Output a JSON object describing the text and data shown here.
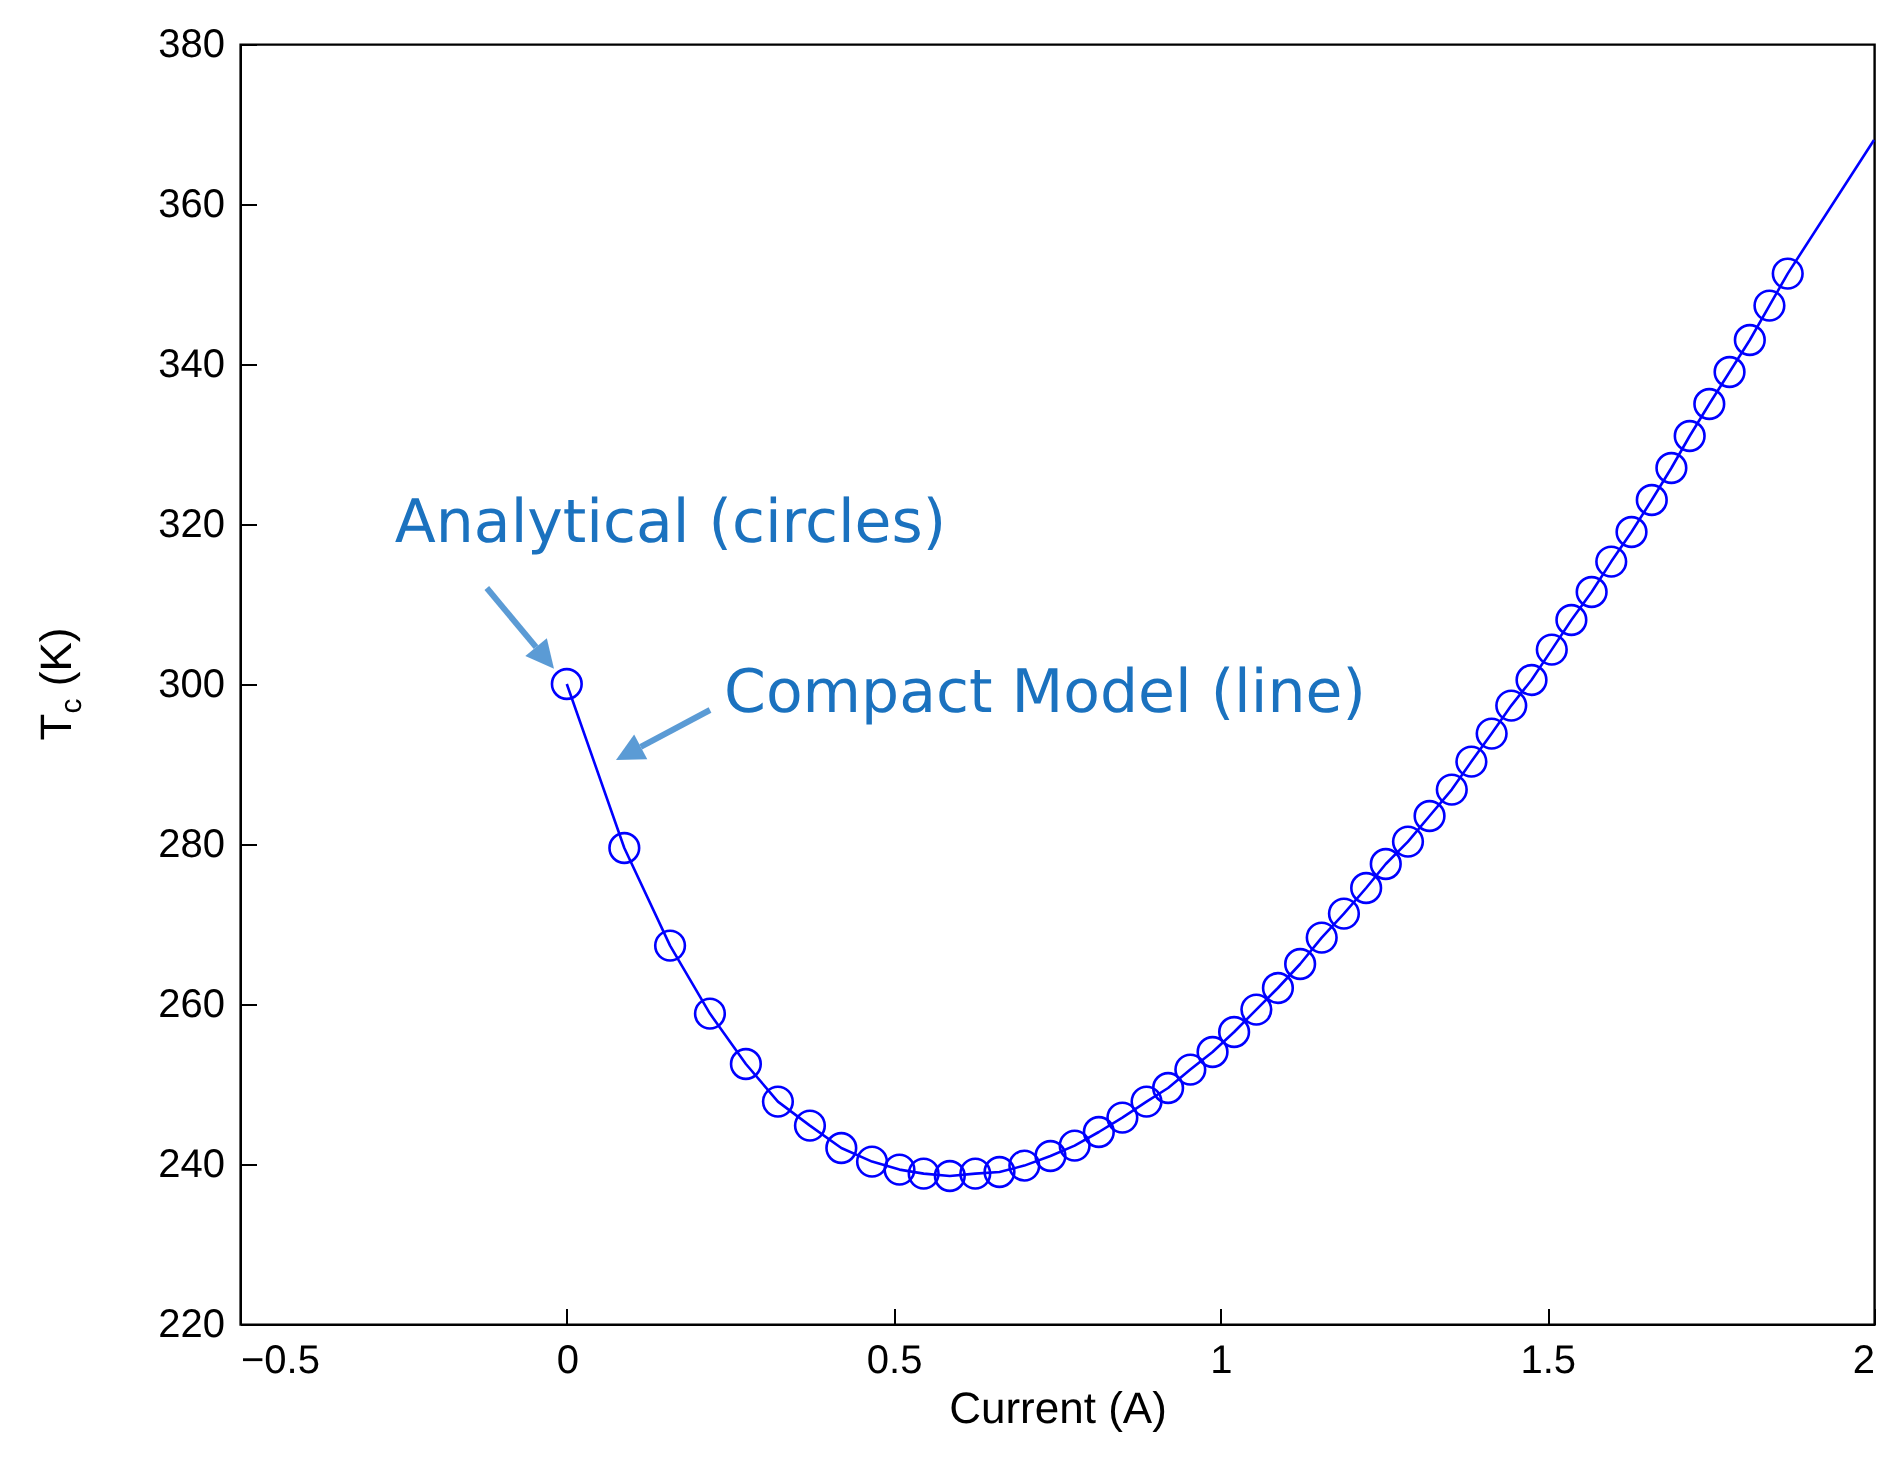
{
  "chart_data": {
    "type": "scatter",
    "xlabel": "Current (A)",
    "ylabel": "T$_{c}$ (K)",
    "xlim": [
      -0.5,
      2
    ],
    "ylim": [
      220,
      380
    ],
    "xticks": [
      {
        "value": -0.5,
        "label": "−0.5"
      },
      0,
      0.5,
      1,
      1.5,
      2
    ],
    "yticks": [
      220,
      240,
      260,
      280,
      300,
      320,
      340,
      360,
      380
    ],
    "grid": false,
    "annotations": [
      {
        "text": "Analytical (circles)",
        "x": 0,
        "y": 300
      },
      "Compact Model (line)"
    ],
    "series": [
      {
        "type": "line",
        "color": "#0000ff",
        "marker": "none",
        "x": [
          0,
          0.088,
          0.158,
          0.219,
          0.274,
          0.323,
          0.372,
          0.42,
          0.467,
          0.509,
          0.546,
          0.586,
          0.625,
          0.662,
          0.7,
          0.74,
          0.777,
          0.814,
          0.85,
          0.887,
          0.92,
          0.954,
          0.988,
          1.021,
          1.055,
          1.088,
          1.122,
          1.155,
          1.189,
          1.223,
          1.253,
          1.287,
          1.32,
          1.354,
          1.384,
          1.415,
          1.445,
          1.476,
          1.507,
          1.537,
          1.568,
          1.598,
          1.629,
          1.66,
          1.69,
          1.718,
          1.748,
          1.779,
          1.81,
          1.84,
          1.868,
          2
        ],
        "values": [
          300,
          279.5,
          267.3,
          258.8,
          252.5,
          247.8,
          244.8,
          242,
          240.3,
          239.3,
          238.8,
          238.5,
          238.8,
          239,
          239.8,
          241,
          242.3,
          244,
          245.8,
          247.8,
          249.5,
          251.8,
          254,
          256.5,
          259.3,
          262,
          265,
          268.3,
          271.3,
          274.5,
          277.5,
          280.3,
          283.5,
          286.8,
          290.3,
          293.8,
          297.3,
          300.5,
          304.3,
          308,
          311.5,
          315.3,
          319,
          323,
          327,
          331,
          335,
          339,
          343,
          347.3,
          351.3,
          368
        ]
      },
      {
        "color": "#0000ff",
        "marker": "circle",
        "x": [
          0,
          0.088,
          0.158,
          0.219,
          0.274,
          0.323,
          0.372,
          0.42,
          0.467,
          0.509,
          0.546,
          0.586,
          0.625,
          0.662,
          0.7,
          0.74,
          0.777,
          0.814,
          0.85,
          0.887,
          0.92,
          0.954,
          0.988,
          1.021,
          1.055,
          1.088,
          1.122,
          1.155,
          1.189,
          1.223,
          1.253,
          1.287,
          1.32,
          1.354,
          1.384,
          1.415,
          1.445,
          1.476,
          1.507,
          1.537,
          1.568,
          1.598,
          1.629,
          1.66,
          1.69,
          1.718,
          1.748,
          1.779,
          1.81,
          1.84,
          1.868
        ],
        "values": [
          300,
          279.5,
          267.3,
          258.8,
          252.5,
          247.8,
          244.8,
          242,
          240.3,
          239.3,
          238.8,
          238.5,
          238.8,
          239,
          239.8,
          241,
          242.3,
          244,
          245.8,
          247.8,
          249.5,
          251.8,
          254,
          256.5,
          259.3,
          262,
          265,
          268.3,
          271.3,
          274.5,
          277.5,
          280.3,
          283.5,
          286.8,
          290.3,
          293.8,
          297.3,
          300.5,
          304.3,
          308,
          311.5,
          315.3,
          319,
          323,
          327,
          331,
          335,
          339,
          343,
          347.3,
          351.3
        ]
      }
    ]
  }
}
